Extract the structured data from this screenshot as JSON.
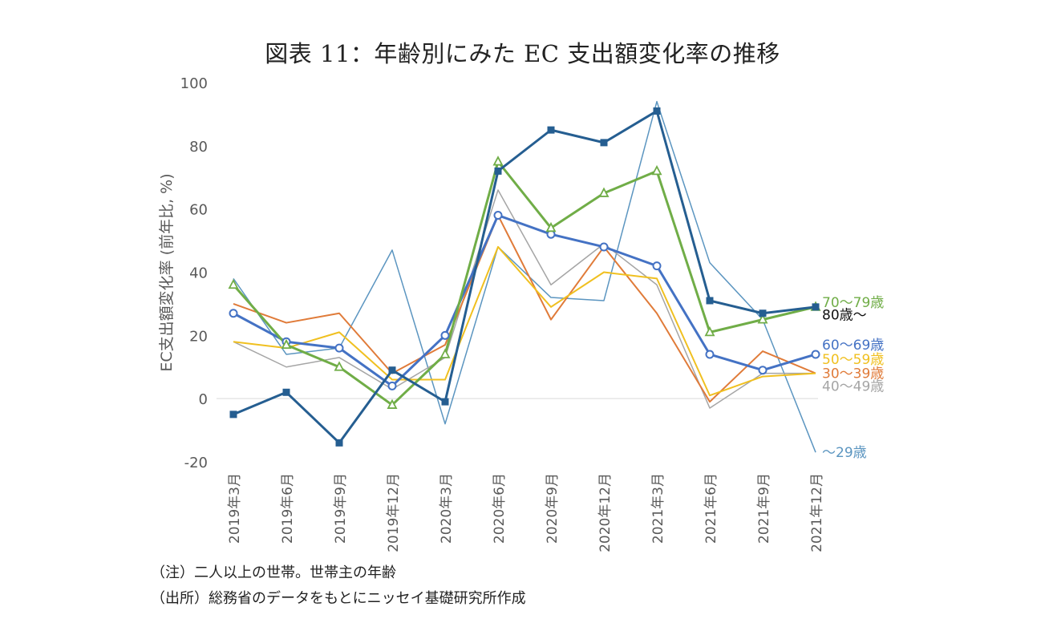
{
  "title": "図表 11：年齢別にみた EC 支出額変化率の推移",
  "notes": {
    "note": "（注）二人以上の世帯。世帯主の年齢",
    "source": "（出所）総務省のデータをもとにニッセイ基礎研究所作成"
  },
  "chart_data": {
    "type": "line",
    "title": "図表 11：年齢別にみた EC 支出額変化率の推移",
    "xlabel": "",
    "ylabel": "EC支出額変化率 (前年比, %)",
    "ylim": [
      -20,
      100
    ],
    "yticks": [
      -20,
      0,
      20,
      40,
      60,
      80,
      100
    ],
    "grid": false,
    "legend": "right-end labels",
    "categories": [
      "2019年3月",
      "2019年6月",
      "2019年9月",
      "2019年12月",
      "2020年3月",
      "2020年6月",
      "2020年9月",
      "2020年12月",
      "2021年3月",
      "2021年6月",
      "2021年9月",
      "2021年12月"
    ],
    "series": [
      {
        "name": "～29歳",
        "color": "#5b95c0",
        "width": 1.5,
        "marker": "none",
        "values": [
          38,
          14,
          16,
          47,
          -8,
          48,
          32,
          31,
          94,
          43,
          25,
          -17
        ]
      },
      {
        "name": "40～49歳",
        "color": "#a5a5a5",
        "width": 1.5,
        "marker": "none",
        "values": [
          18,
          10,
          13,
          3,
          13,
          66,
          36,
          49,
          36,
          -3,
          8,
          8
        ]
      },
      {
        "name": "30～39歳",
        "color": "#e07b39",
        "width": 2,
        "marker": "none",
        "values": [
          30,
          24,
          27,
          8,
          17,
          58,
          25,
          48,
          27,
          -1,
          15,
          8
        ]
      },
      {
        "name": "50～59歳",
        "color": "#f0c020",
        "width": 2,
        "marker": "none",
        "values": [
          18,
          16,
          21,
          6,
          6,
          48,
          29,
          40,
          38,
          1,
          7,
          8
        ]
      },
      {
        "name": "60～69歳",
        "color": "#4472c4",
        "width": 3,
        "marker": "circle",
        "values": [
          27,
          18,
          16,
          4,
          20,
          58,
          52,
          48,
          42,
          14,
          9,
          14
        ]
      },
      {
        "name": "70～79歳",
        "color": "#70ad47",
        "width": 3,
        "marker": "triangle",
        "values": [
          36,
          17,
          10,
          -2,
          14,
          75,
          54,
          65,
          72,
          21,
          25,
          29
        ]
      },
      {
        "name": "80歳～",
        "color": "#255e91",
        "width": 3,
        "marker": "square",
        "values": [
          -5,
          2,
          -14,
          9,
          -1,
          72,
          85,
          81,
          91,
          31,
          27,
          29
        ]
      }
    ],
    "end_labels": [
      {
        "text": "70～79歳",
        "color": "#70ad47",
        "y": 30.5
      },
      {
        "text": "80歳～",
        "color": "#111111",
        "y": 26.5
      },
      {
        "text": "60～69歳",
        "color": "#4472c4",
        "y": 17
      },
      {
        "text": "50～59歳",
        "color": "#f0c020",
        "y": 12.5
      },
      {
        "text": "30～39歳",
        "color": "#e07b39",
        "y": 8
      },
      {
        "text": "40～49歳",
        "color": "#a5a5a5",
        "y": 4
      },
      {
        "text": "～29歳",
        "color": "#5b95c0",
        "y": -17
      }
    ]
  }
}
